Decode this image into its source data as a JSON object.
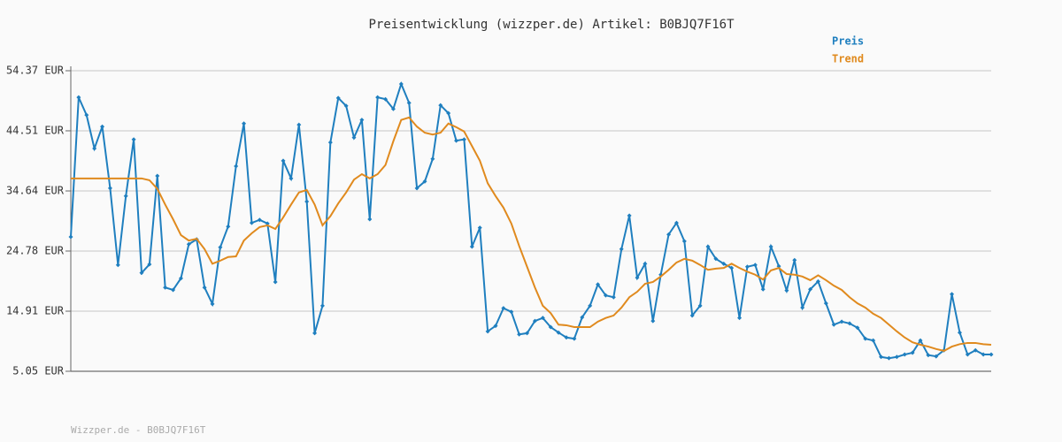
{
  "chart_data": {
    "type": "line",
    "title": "Preisentwicklung (wizzper.de) Artikel: B0BJQ7F16T",
    "footer": "Wizzper.de - B0BJQ7F16T",
    "ylim": [
      5.05,
      54.37
    ],
    "yticks": [
      {
        "value": 5.05,
        "label": "5.05 EUR"
      },
      {
        "value": 14.91,
        "label": "14.91 EUR"
      },
      {
        "value": 24.78,
        "label": "24.78 EUR"
      },
      {
        "value": 34.64,
        "label": "34.64 EUR"
      },
      {
        "value": 44.51,
        "label": "44.51 EUR"
      },
      {
        "value": 54.37,
        "label": "54.37 EUR"
      }
    ],
    "grid": true,
    "legend": "top-right",
    "series": [
      {
        "name": "Preis",
        "color": "#1f7fbf",
        "markers": true,
        "values": [
          27.1,
          50.0,
          47.1,
          41.6,
          45.2,
          35.1,
          22.5,
          33.8,
          43.1,
          21.2,
          22.6,
          37.1,
          18.8,
          18.4,
          20.3,
          25.9,
          26.7,
          18.8,
          16.1,
          25.4,
          28.8,
          38.7,
          45.7,
          29.4,
          29.9,
          29.3,
          19.7,
          39.6,
          36.7,
          45.5,
          32.9,
          11.3,
          15.8,
          42.6,
          49.9,
          48.6,
          43.4,
          46.3,
          30.0,
          50.0,
          49.7,
          48.1,
          52.2,
          49.1,
          35.1,
          36.2,
          39.9,
          48.7,
          47.4,
          42.9,
          43.1,
          25.5,
          28.6,
          11.6,
          12.5,
          15.4,
          14.8,
          11.1,
          11.3,
          13.3,
          13.8,
          12.3,
          11.4,
          10.6,
          10.4,
          13.9,
          15.8,
          19.3,
          17.5,
          17.2,
          25.1,
          30.6,
          20.4,
          22.7,
          13.3,
          20.9,
          27.5,
          29.4,
          26.4,
          14.2,
          15.8,
          25.5,
          23.5,
          22.7,
          22.0,
          13.8,
          22.2,
          22.5,
          18.5,
          25.5,
          22.3,
          18.3,
          23.3,
          15.5,
          18.5,
          19.8,
          16.2,
          12.7,
          13.2,
          12.9,
          12.2,
          10.4,
          10.1,
          7.4,
          7.2,
          7.4,
          7.8,
          8.1,
          10.1,
          7.7,
          7.5,
          8.5,
          17.7,
          11.4,
          7.8,
          8.5,
          7.8,
          7.8
        ]
      },
      {
        "name": "Trend",
        "color": "#e08a1e",
        "markers": false,
        "values": [
          36.7,
          36.7,
          36.7,
          36.7,
          36.7,
          36.7,
          36.7,
          36.7,
          36.7,
          36.7,
          36.4,
          35.0,
          32.4,
          30.0,
          27.4,
          26.5,
          26.8,
          25.1,
          22.7,
          23.2,
          23.8,
          23.9,
          26.5,
          27.7,
          28.7,
          29.0,
          28.4,
          30.3,
          32.4,
          34.4,
          34.8,
          32.4,
          29.0,
          30.5,
          32.6,
          34.4,
          36.5,
          37.4,
          36.7,
          37.4,
          38.9,
          42.8,
          46.3,
          46.7,
          45.2,
          44.2,
          43.9,
          44.2,
          45.7,
          45.1,
          44.4,
          42.0,
          39.6,
          35.9,
          33.8,
          31.9,
          29.3,
          25.6,
          22.2,
          18.8,
          15.8,
          14.6,
          12.7,
          12.6,
          12.3,
          12.3,
          12.3,
          13.2,
          13.8,
          14.2,
          15.5,
          17.2,
          18.1,
          19.4,
          19.7,
          20.6,
          21.7,
          22.9,
          23.5,
          23.2,
          22.5,
          21.7,
          21.9,
          22.0,
          22.7,
          22.0,
          21.4,
          20.9,
          20.1,
          21.6,
          22.0,
          21.0,
          20.9,
          20.6,
          20.0,
          20.8,
          20.0,
          19.1,
          18.4,
          17.2,
          16.2,
          15.5,
          14.5,
          13.8,
          12.7,
          11.6,
          10.6,
          9.8,
          9.4,
          9.1,
          8.7,
          8.4,
          9.1,
          9.5,
          9.7,
          9.7,
          9.5,
          9.4
        ]
      }
    ]
  }
}
